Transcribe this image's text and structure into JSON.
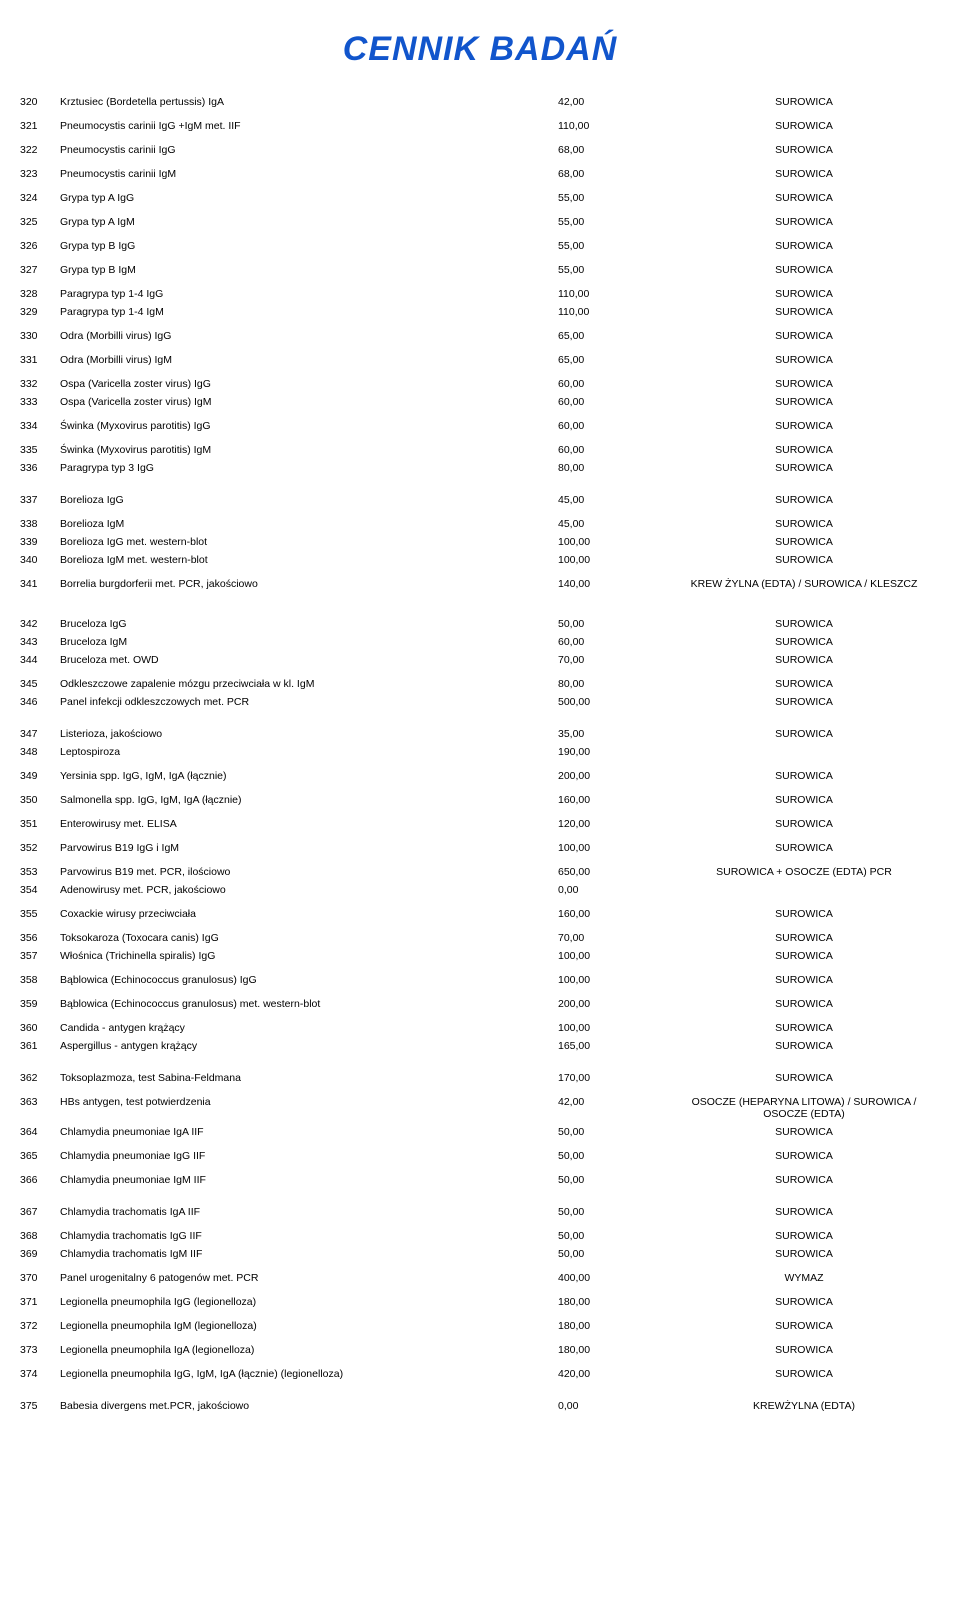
{
  "title": "CENNIK BADAŃ",
  "columns": {
    "id_width": 40,
    "name_width": 490,
    "price_width": 110
  },
  "colors": {
    "title": "#1155cc",
    "text": "#000000",
    "background": "#ffffff"
  },
  "typography": {
    "title_fontsize": 34,
    "row_fontsize": 10.5
  },
  "rows": [
    {
      "id": "320",
      "name": "Krztusiec (Bordetella pertussis) IgA",
      "price": "42,00",
      "material": "SUROWICA",
      "gap_after": "sm"
    },
    {
      "id": "321",
      "name": "Pneumocystis carinii IgG +IgM met. IIF",
      "price": "110,00",
      "material": "SUROWICA",
      "gap_after": "sm"
    },
    {
      "id": "322",
      "name": "Pneumocystis carinii IgG",
      "price": "68,00",
      "material": "SUROWICA",
      "gap_after": "sm"
    },
    {
      "id": "323",
      "name": "Pneumocystis carinii IgM",
      "price": "68,00",
      "material": "SUROWICA",
      "gap_after": "sm"
    },
    {
      "id": "324",
      "name": "Grypa typ A IgG",
      "price": "55,00",
      "material": "SUROWICA",
      "gap_after": "sm"
    },
    {
      "id": "325",
      "name": "Grypa typ A IgM",
      "price": "55,00",
      "material": "SUROWICA",
      "gap_after": "sm"
    },
    {
      "id": "326",
      "name": "Grypa typ B IgG",
      "price": "55,00",
      "material": "SUROWICA",
      "gap_after": "sm"
    },
    {
      "id": "327",
      "name": "Grypa typ B IgM",
      "price": "55,00",
      "material": "SUROWICA",
      "gap_after": "sm"
    },
    {
      "id": "328",
      "name": "Paragrypa typ 1-4 IgG",
      "price": "110,00",
      "material": "SUROWICA"
    },
    {
      "id": "329",
      "name": "Paragrypa typ 1-4 IgM",
      "price": "110,00",
      "material": "SUROWICA",
      "gap_after": "sm"
    },
    {
      "id": "330",
      "name": "Odra (Morbilli virus) IgG",
      "price": "65,00",
      "material": "SUROWICA",
      "gap_after": "sm"
    },
    {
      "id": "331",
      "name": "Odra (Morbilli virus) IgM",
      "price": "65,00",
      "material": "SUROWICA",
      "gap_after": "sm"
    },
    {
      "id": "332",
      "name": "Ospa (Varicella zoster virus) IgG",
      "price": "60,00",
      "material": "SUROWICA"
    },
    {
      "id": "333",
      "name": "Ospa (Varicella zoster virus) IgM",
      "price": "60,00",
      "material": "SUROWICA",
      "gap_after": "sm"
    },
    {
      "id": "334",
      "name": "Świnka (Myxovirus parotitis) IgG",
      "price": "60,00",
      "material": "SUROWICA",
      "gap_after": "sm"
    },
    {
      "id": "335",
      "name": "Świnka (Myxovirus parotitis) IgM",
      "price": "60,00",
      "material": "SUROWICA"
    },
    {
      "id": "336",
      "name": "Paragrypa typ 3 IgG",
      "price": "80,00",
      "material": "SUROWICA",
      "gap_after": "md"
    },
    {
      "id": "337",
      "name": "Borelioza IgG",
      "price": "45,00",
      "material": "SUROWICA",
      "gap_after": "sm"
    },
    {
      "id": "338",
      "name": "Borelioza IgM",
      "price": "45,00",
      "material": "SUROWICA"
    },
    {
      "id": "339",
      "name": "Borelioza IgG met. western-blot",
      "price": "100,00",
      "material": "SUROWICA"
    },
    {
      "id": "340",
      "name": "Borelioza IgM met. western-blot",
      "price": "100,00",
      "material": "SUROWICA",
      "gap_after": "sm"
    },
    {
      "id": "341",
      "name": "Borrelia burgdorferii met. PCR, jakościowo",
      "price": "140,00",
      "material": "KREW ŻYLNA (EDTA) / SUROWICA / KLESZCZ",
      "gap_after": "lg"
    },
    {
      "id": "342",
      "name": "Bruceloza IgG",
      "price": "50,00",
      "material": "SUROWICA"
    },
    {
      "id": "343",
      "name": "Bruceloza IgM",
      "price": "60,00",
      "material": "SUROWICA"
    },
    {
      "id": "344",
      "name": "Bruceloza met. OWD",
      "price": "70,00",
      "material": "SUROWICA",
      "gap_after": "sm"
    },
    {
      "id": "345",
      "name": "Odkleszczowe zapalenie mózgu przeciwciała w kl. IgM",
      "price": "80,00",
      "material": "SUROWICA"
    },
    {
      "id": "346",
      "name": "Panel infekcji odkleszczowych met. PCR",
      "price": "500,00",
      "material": "SUROWICA",
      "gap_after": "md"
    },
    {
      "id": "347",
      "name": "Listerioza, jakościowo",
      "price": "35,00",
      "material": "SUROWICA"
    },
    {
      "id": "348",
      "name": "Leptospiroza",
      "price": "190,00",
      "material": "",
      "gap_after": "sm"
    },
    {
      "id": "349",
      "name": "Yersinia spp. IgG, IgM, IgA (łącznie)",
      "price": "200,00",
      "material": "SUROWICA",
      "gap_after": "sm"
    },
    {
      "id": "350",
      "name": "Salmonella spp. IgG, IgM, IgA (łącznie)",
      "price": "160,00",
      "material": "SUROWICA",
      "gap_after": "sm"
    },
    {
      "id": "351",
      "name": "Enterowirusy met. ELISA",
      "price": "120,00",
      "material": "SUROWICA",
      "gap_after": "sm"
    },
    {
      "id": "352",
      "name": "Parvowirus B19 IgG i IgM",
      "price": "100,00",
      "material": "SUROWICA",
      "gap_after": "sm"
    },
    {
      "id": "353",
      "name": "Parvowirus B19 met. PCR, ilościowo",
      "price": "650,00",
      "material": "SUROWICA + OSOCZE (EDTA) PCR"
    },
    {
      "id": "354",
      "name": "Adenowirusy met. PCR, jakościowo",
      "price": "0,00",
      "material": "",
      "gap_after": "sm"
    },
    {
      "id": "355",
      "name": "Coxackie wirusy przeciwciała",
      "price": "160,00",
      "material": "SUROWICA",
      "gap_after": "sm"
    },
    {
      "id": "356",
      "name": "Toksokaroza (Toxocara canis) IgG",
      "price": "70,00",
      "material": "SUROWICA"
    },
    {
      "id": "357",
      "name": "Włośnica (Trichinella spiralis) IgG",
      "price": "100,00",
      "material": "SUROWICA",
      "gap_after": "sm"
    },
    {
      "id": "358",
      "name": "Bąblowica (Echinococcus granulosus) IgG",
      "price": "100,00",
      "material": "SUROWICA",
      "gap_after": "sm"
    },
    {
      "id": "359",
      "name": "Bąblowica (Echinococcus granulosus) met. western-blot",
      "price": "200,00",
      "material": "SUROWICA",
      "gap_after": "sm"
    },
    {
      "id": "360",
      "name": "Candida - antygen krążący",
      "price": "100,00",
      "material": "SUROWICA"
    },
    {
      "id": "361",
      "name": "Aspergillus - antygen krążący",
      "price": "165,00",
      "material": "SUROWICA",
      "gap_after": "md"
    },
    {
      "id": "362",
      "name": "Toksoplazmoza, test Sabina-Feldmana",
      "price": "170,00",
      "material": "SUROWICA",
      "gap_after": "sm"
    },
    {
      "id": "363",
      "name": "HBs antygen, test potwierdzenia",
      "price": "42,00",
      "material": "OSOCZE (HEPARYNA LITOWA) / SUROWICA / OSOCZE (EDTA)"
    },
    {
      "id": "364",
      "name": "Chlamydia pneumoniae IgA IIF",
      "price": "50,00",
      "material": "SUROWICA",
      "gap_after": "sm"
    },
    {
      "id": "365",
      "name": "Chlamydia pneumoniae IgG IIF",
      "price": "50,00",
      "material": "SUROWICA",
      "gap_after": "sm"
    },
    {
      "id": "366",
      "name": "Chlamydia pneumoniae IgM IIF",
      "price": "50,00",
      "material": "SUROWICA",
      "gap_after": "md"
    },
    {
      "id": "367",
      "name": "Chlamydia trachomatis IgA IIF",
      "price": "50,00",
      "material": "SUROWICA",
      "gap_after": "sm"
    },
    {
      "id": "368",
      "name": "Chlamydia trachomatis IgG IIF",
      "price": "50,00",
      "material": "SUROWICA"
    },
    {
      "id": "369",
      "name": "Chlamydia trachomatis IgM IIF",
      "price": "50,00",
      "material": "SUROWICA",
      "gap_after": "sm"
    },
    {
      "id": "370",
      "name": "Panel urogenitalny 6 patogenów met. PCR",
      "price": "400,00",
      "material": "WYMAZ",
      "gap_after": "sm"
    },
    {
      "id": "371",
      "name": "Legionella pneumophila IgG (legionelloza)",
      "price": "180,00",
      "material": "SUROWICA",
      "gap_after": "sm"
    },
    {
      "id": "372",
      "name": "Legionella pneumophila IgM (legionelloza)",
      "price": "180,00",
      "material": "SUROWICA",
      "gap_after": "sm"
    },
    {
      "id": "373",
      "name": "Legionella pneumophila IgA (legionelloza)",
      "price": "180,00",
      "material": "SUROWICA",
      "gap_after": "sm"
    },
    {
      "id": "374",
      "name": "Legionella pneumophila IgG, IgM, IgA (łącznie) (legionelloza)",
      "price": "420,00",
      "material": "SUROWICA",
      "gap_after": "md"
    },
    {
      "id": "375",
      "name": "Babesia divergens met.PCR, jakościowo",
      "price": "0,00",
      "material": "KREWŻYLNA (EDTA)"
    }
  ]
}
